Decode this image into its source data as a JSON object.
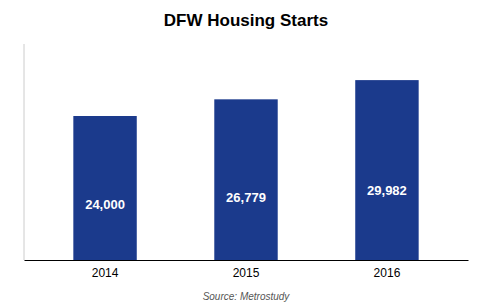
{
  "chart_data": {
    "type": "bar",
    "title": "DFW Housing Starts",
    "categories": [
      "2014",
      "2015",
      "2016"
    ],
    "values": [
      24000,
      26779,
      29982
    ],
    "value_labels": [
      "24,000",
      "26,779",
      "29,982"
    ],
    "data_labels": true,
    "color": "#1B3A8C",
    "ylim": [
      0,
      36000
    ],
    "tick_labels": "x",
    "annotations": [
      "Source: Metrostudy"
    ]
  }
}
